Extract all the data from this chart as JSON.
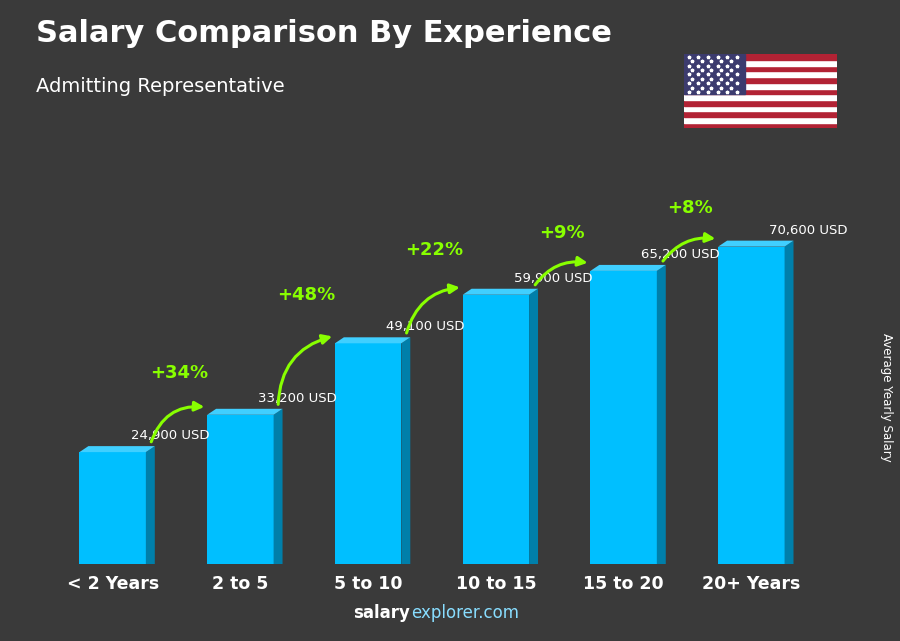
{
  "title": "Salary Comparison By Experience",
  "subtitle": "Admitting Representative",
  "categories": [
    "< 2 Years",
    "2 to 5",
    "5 to 10",
    "10 to 15",
    "15 to 20",
    "20+ Years"
  ],
  "values": [
    24900,
    33200,
    49100,
    59900,
    65200,
    70600
  ],
  "salary_labels": [
    "24,900 USD",
    "33,200 USD",
    "49,100 USD",
    "59,900 USD",
    "65,200 USD",
    "70,600 USD"
  ],
  "pct_labels": [
    "+34%",
    "+48%",
    "+22%",
    "+9%",
    "+8%"
  ],
  "bar_color_face": "#00BFFF",
  "bar_color_light": "#7FDFFF",
  "bar_color_dark": "#007FAA",
  "bar_top_color": "#40CFFF",
  "background_color": "#3a3a3a",
  "title_color": "#ffffff",
  "subtitle_color": "#ffffff",
  "label_color": "#ffffff",
  "pct_color": "#88ff00",
  "arrow_color": "#88ff00",
  "source_bold": "salary",
  "source_normal": "explorer.com",
  "ylabel": "Average Yearly Salary"
}
